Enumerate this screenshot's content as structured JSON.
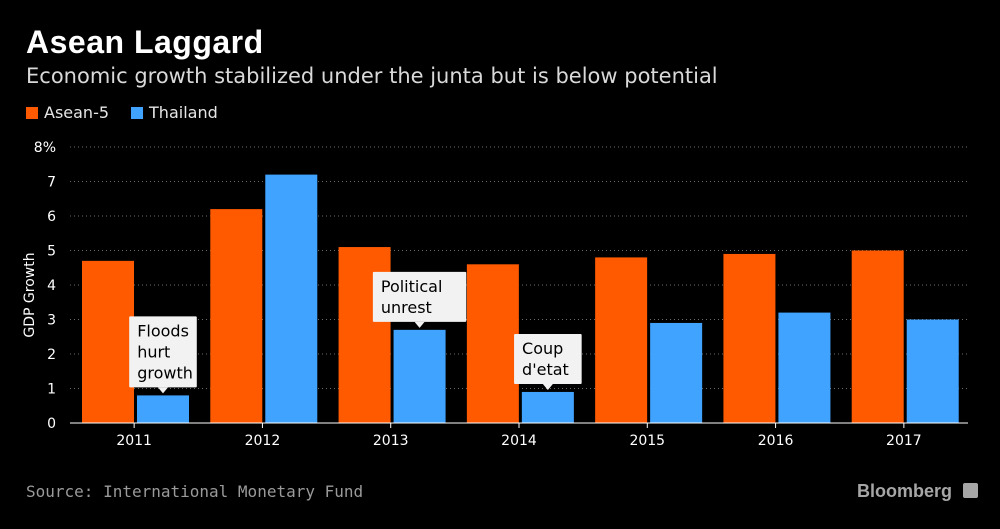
{
  "header": {
    "title": "Asean Laggard",
    "subtitle": "Economic growth stabilized under the junta but is below potential"
  },
  "footer": {
    "source": "Source: International Monetary Fund",
    "brand": "Bloomberg"
  },
  "colors": {
    "asean": "#ff5a00",
    "thailand": "#40a3ff",
    "grid": "#6b6b6b",
    "annotation_bg": "#f2f2f2"
  },
  "chart_data": {
    "type": "bar",
    "categories": [
      "2011",
      "2012",
      "2013",
      "2014",
      "2015",
      "2016",
      "2017"
    ],
    "series": [
      {
        "name": "Asean-5",
        "values": [
          4.7,
          6.2,
          5.1,
          4.6,
          4.8,
          4.9,
          5.0
        ]
      },
      {
        "name": "Thailand",
        "values": [
          0.8,
          7.2,
          2.7,
          0.9,
          2.9,
          3.2,
          3.0
        ]
      }
    ],
    "title": "Asean Laggard",
    "ylabel": "GDP Growth",
    "ylim": [
      0,
      8
    ],
    "yticks": [
      "0",
      "1",
      "2",
      "3",
      "4",
      "5",
      "6",
      "7",
      "8%"
    ],
    "grid": true,
    "legend": "top-left",
    "annotations": [
      {
        "category": "2011",
        "series": "Thailand",
        "lines": [
          "Floods",
          "hurt",
          "growth"
        ]
      },
      {
        "category": "2013",
        "series": "Thailand",
        "lines": [
          "Political",
          "unrest"
        ]
      },
      {
        "category": "2014",
        "series": "Thailand",
        "lines": [
          "Coup",
          "d'etat"
        ]
      }
    ]
  }
}
